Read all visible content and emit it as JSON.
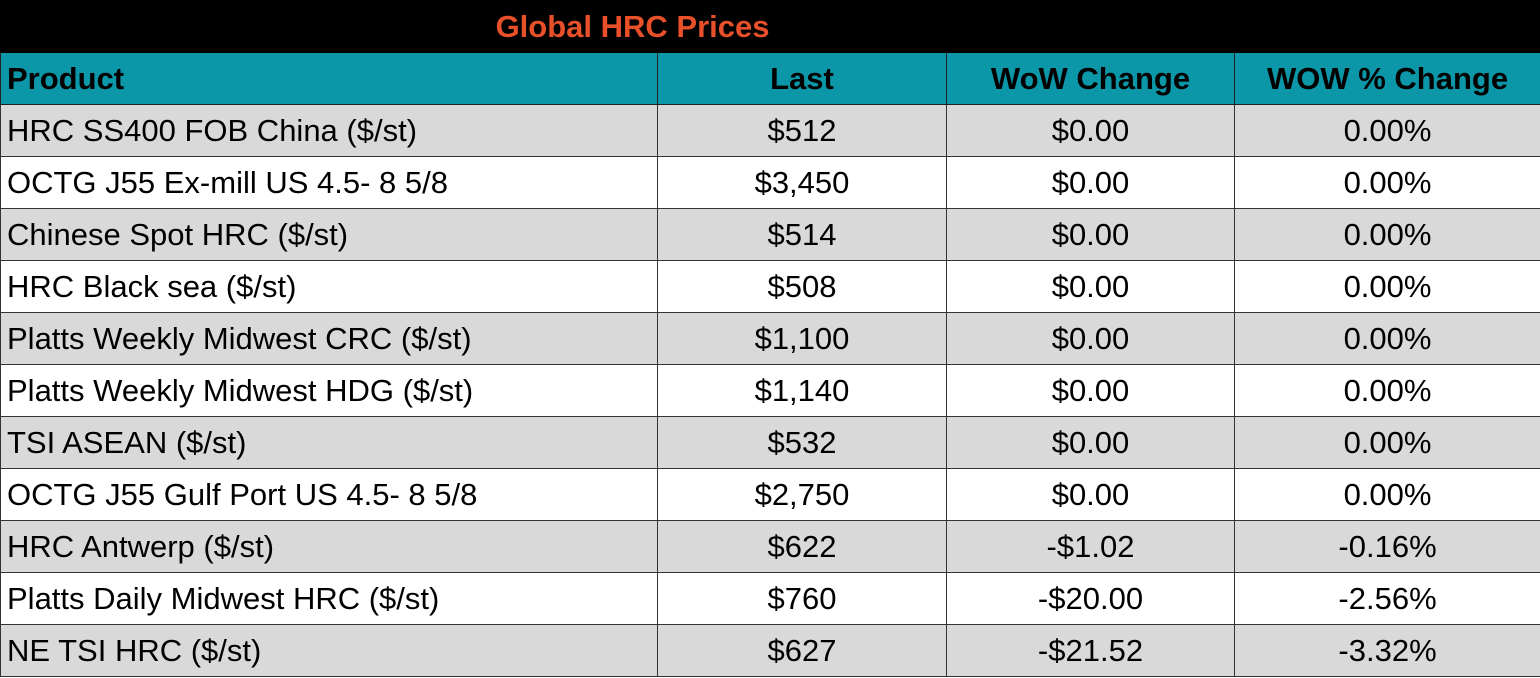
{
  "title": "Global HRC Prices",
  "colors": {
    "title_bg": "#000000",
    "title_text": "#e8502a",
    "header_bg": "#0b97a7",
    "shade_row": "#d9d9d9",
    "plain_row": "#ffffff"
  },
  "headers": {
    "product": "Product",
    "last": "Last",
    "wow_change": "WoW Change",
    "wow_pct_change": "WOW % Change"
  },
  "rows": [
    {
      "product": "HRC SS400 FOB China ($/st)",
      "last": "$512",
      "wow_change": "$0.00",
      "wow_pct_change": "0.00%"
    },
    {
      "product": "OCTG J55 Ex-mill US 4.5- 8 5/8",
      "last": "$3,450",
      "wow_change": "$0.00",
      "wow_pct_change": "0.00%"
    },
    {
      "product": "Chinese Spot HRC ($/st)",
      "last": "$514",
      "wow_change": "$0.00",
      "wow_pct_change": "0.00%"
    },
    {
      "product": "HRC Black sea ($/st)",
      "last": "$508",
      "wow_change": "$0.00",
      "wow_pct_change": "0.00%"
    },
    {
      "product": "Platts Weekly Midwest CRC ($/st)",
      "last": "$1,100",
      "wow_change": "$0.00",
      "wow_pct_change": "0.00%"
    },
    {
      "product": "Platts Weekly Midwest HDG ($/st)",
      "last": "$1,140",
      "wow_change": "$0.00",
      "wow_pct_change": "0.00%"
    },
    {
      "product": "TSI ASEAN ($/st)",
      "last": "$532",
      "wow_change": "$0.00",
      "wow_pct_change": "0.00%"
    },
    {
      "product": "OCTG J55 Gulf Port US 4.5- 8 5/8",
      "last": "$2,750",
      "wow_change": "$0.00",
      "wow_pct_change": "0.00%"
    },
    {
      "product": "HRC Antwerp ($/st)",
      "last": "$622",
      "wow_change": "-$1.02",
      "wow_pct_change": "-0.16%"
    },
    {
      "product": "Platts Daily Midwest HRC ($/st)",
      "last": "$760",
      "wow_change": "-$20.00",
      "wow_pct_change": "-2.56%"
    },
    {
      "product": "NE TSI HRC ($/st)",
      "last": "$627",
      "wow_change": "-$21.52",
      "wow_pct_change": "-3.32%"
    }
  ]
}
